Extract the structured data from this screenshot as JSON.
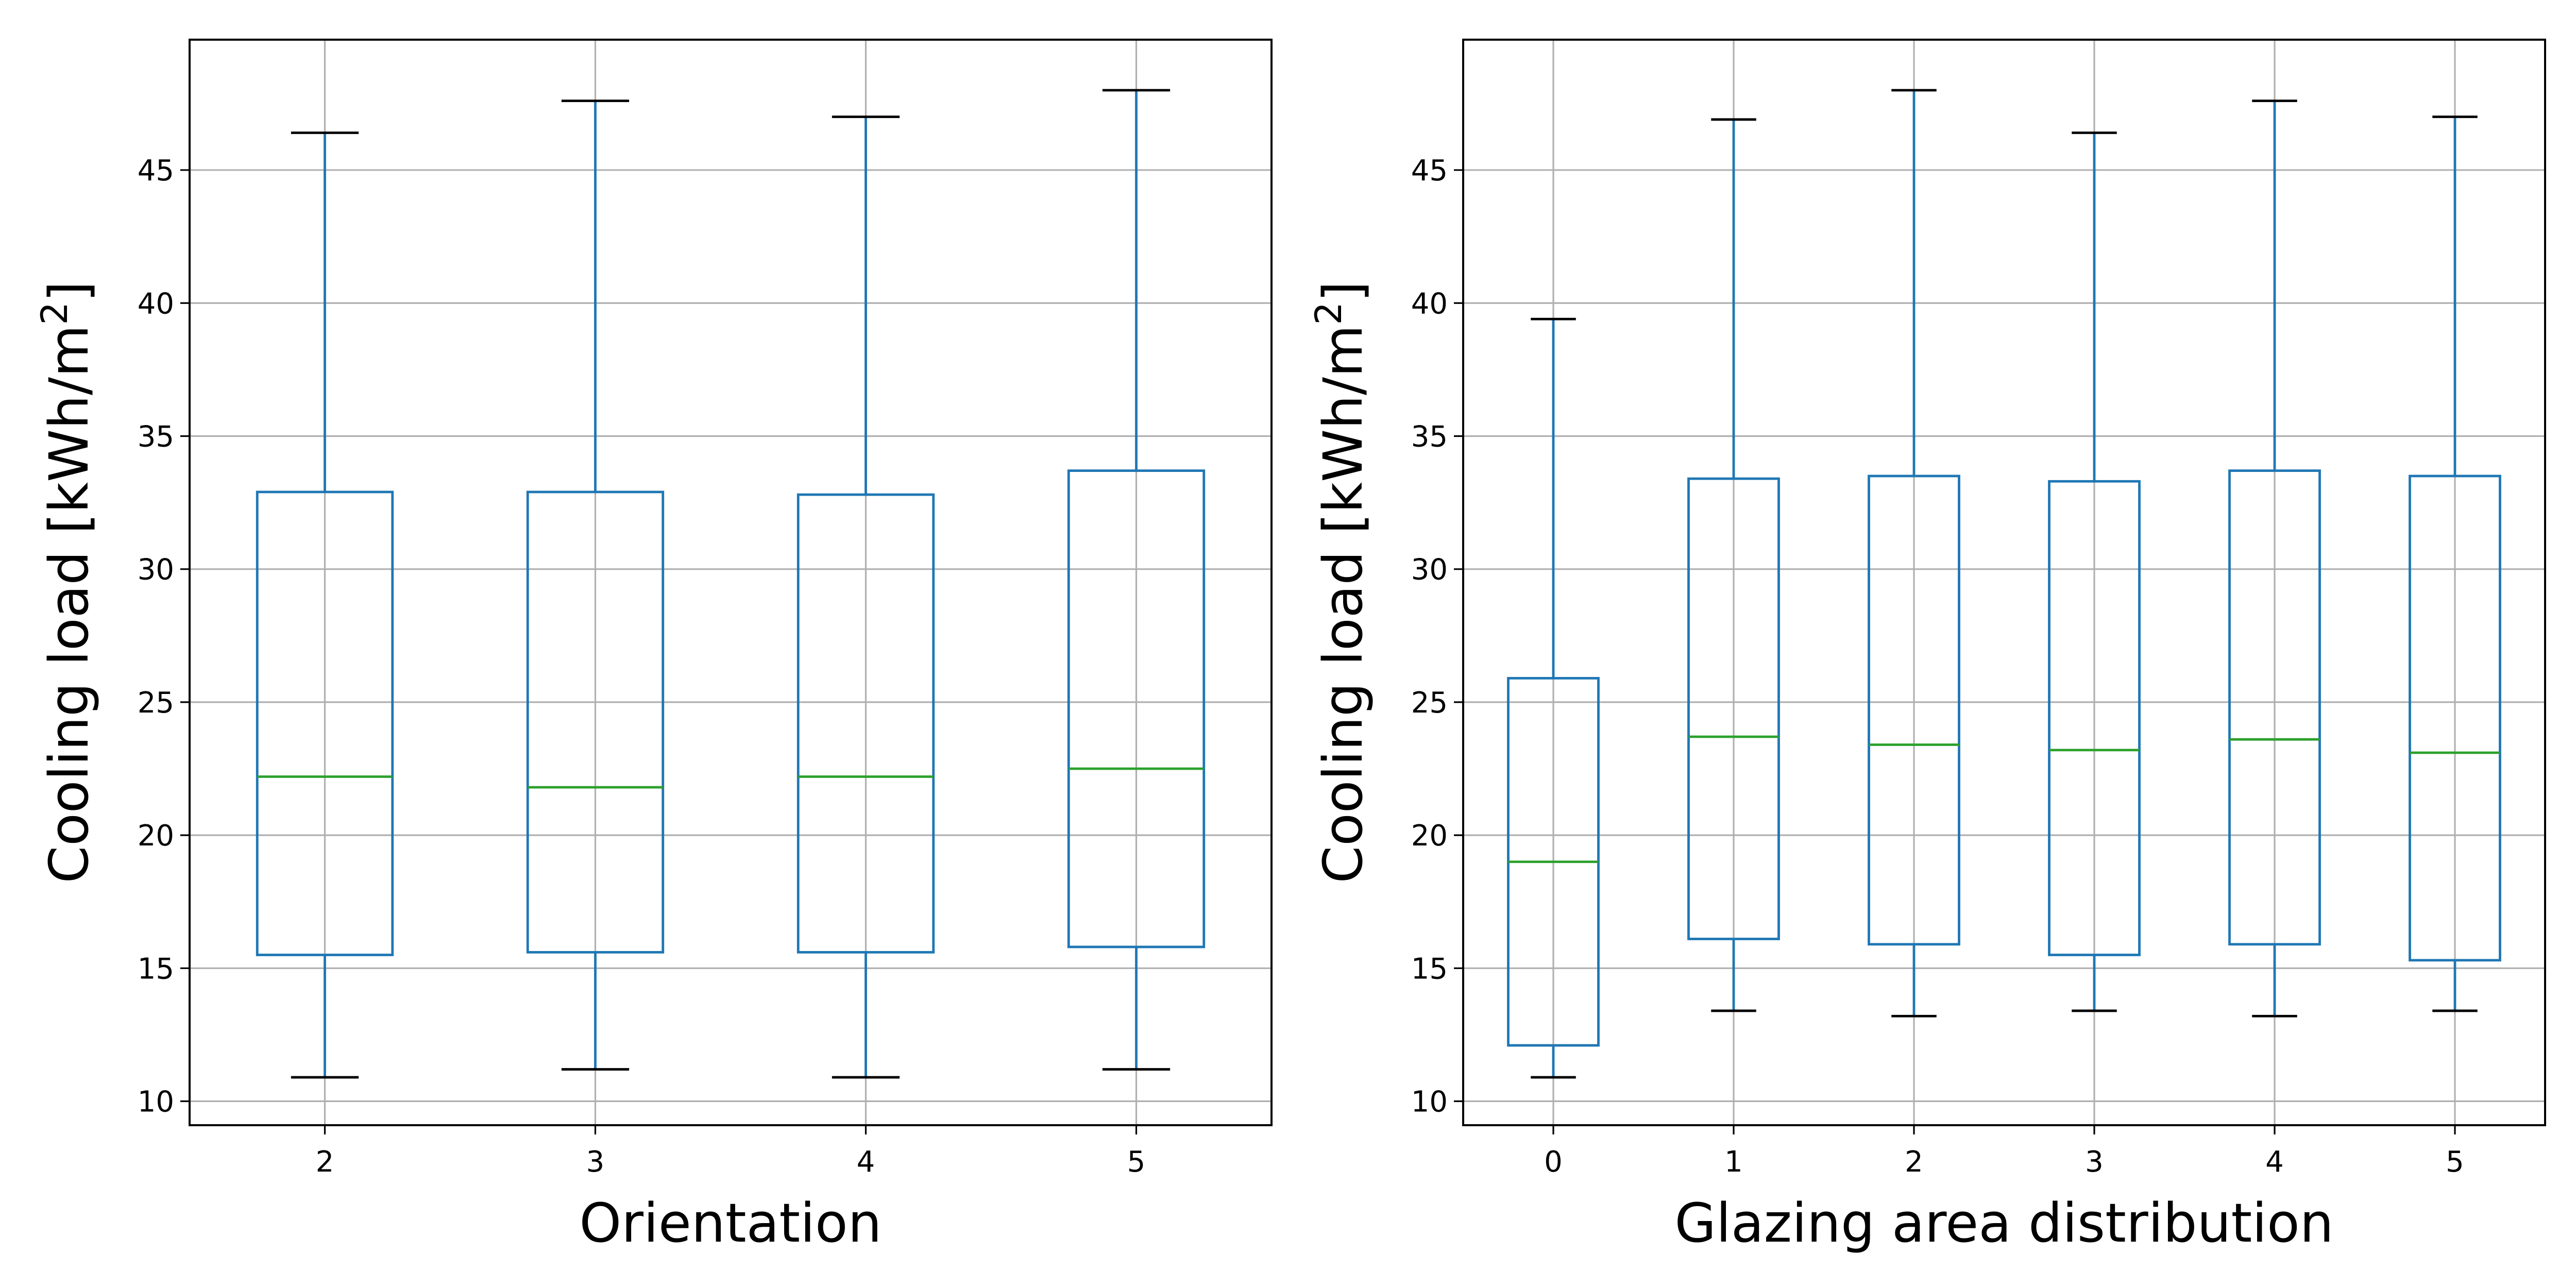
{
  "chart_data": [
    {
      "type": "box",
      "xlabel": "Orientation",
      "ylabel": "Cooling load [kWh/m",
      "ylabel_sup": "2",
      "ylabel_close": "]",
      "ylim": [
        9.1,
        49.9
      ],
      "yticks": [
        "10",
        "15",
        "20",
        "25",
        "30",
        "35",
        "40",
        "45"
      ],
      "grid": true,
      "categories": [
        "2",
        "3",
        "4",
        "5"
      ],
      "boxes": [
        {
          "whislo": 10.9,
          "q1": 15.5,
          "med": 22.2,
          "q3": 32.9,
          "whishi": 46.4
        },
        {
          "whislo": 11.2,
          "q1": 15.6,
          "med": 21.8,
          "q3": 32.9,
          "whishi": 47.6
        },
        {
          "whislo": 10.9,
          "q1": 15.6,
          "med": 22.2,
          "q3": 32.8,
          "whishi": 47.0
        },
        {
          "whislo": 11.2,
          "q1": 15.8,
          "med": 22.5,
          "q3": 33.7,
          "whishi": 48.0
        }
      ]
    },
    {
      "type": "box",
      "xlabel": "Glazing area distribution",
      "ylabel": "Cooling load [kWh/m",
      "ylabel_sup": "2",
      "ylabel_close": "]",
      "ylim": [
        9.1,
        49.9
      ],
      "yticks": [
        "10",
        "15",
        "20",
        "25",
        "30",
        "35",
        "40",
        "45"
      ],
      "grid": true,
      "categories": [
        "0",
        "1",
        "2",
        "3",
        "4",
        "5"
      ],
      "boxes": [
        {
          "whislo": 10.9,
          "q1": 12.1,
          "med": 19.0,
          "q3": 25.9,
          "whishi": 39.4
        },
        {
          "whislo": 13.4,
          "q1": 16.1,
          "med": 23.7,
          "q3": 33.4,
          "whishi": 46.9
        },
        {
          "whislo": 13.2,
          "q1": 15.9,
          "med": 23.4,
          "q3": 33.5,
          "whishi": 48.0
        },
        {
          "whislo": 13.4,
          "q1": 15.5,
          "med": 23.2,
          "q3": 33.3,
          "whishi": 46.4
        },
        {
          "whislo": 13.2,
          "q1": 15.9,
          "med": 23.6,
          "q3": 33.7,
          "whishi": 47.6
        },
        {
          "whislo": 13.4,
          "q1": 15.3,
          "med": 23.1,
          "q3": 33.5,
          "whishi": 47.0
        }
      ]
    }
  ]
}
